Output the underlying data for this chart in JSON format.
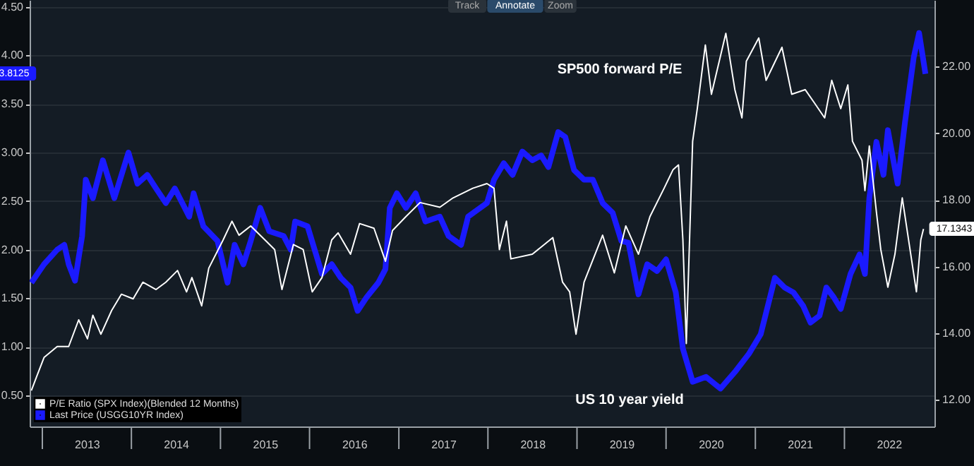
{
  "chart_data": {
    "type": "line",
    "xlim": [
      "2012-11-10",
      "2023-01-05"
    ],
    "xticks": [
      {
        "value": "2013-01-01",
        "label": null
      },
      {
        "value": "2013-07-02",
        "label": "2013"
      },
      {
        "value": "2014-01-01",
        "label": null
      },
      {
        "value": "2014-07-02",
        "label": "2014"
      },
      {
        "value": "2015-01-01",
        "label": null
      },
      {
        "value": "2015-07-02",
        "label": "2015"
      },
      {
        "value": "2016-01-01",
        "label": null
      },
      {
        "value": "2016-07-02",
        "label": "2016"
      },
      {
        "value": "2017-01-01",
        "label": null
      },
      {
        "value": "2017-07-02",
        "label": "2017"
      },
      {
        "value": "2018-01-01",
        "label": null
      },
      {
        "value": "2018-07-02",
        "label": "2018"
      },
      {
        "value": "2019-01-01",
        "label": null
      },
      {
        "value": "2019-07-02",
        "label": "2019"
      },
      {
        "value": "2020-01-01",
        "label": null
      },
      {
        "value": "2020-07-02",
        "label": "2020"
      },
      {
        "value": "2021-01-01",
        "label": null
      },
      {
        "value": "2021-07-02",
        "label": "2021"
      },
      {
        "value": "2022-01-01",
        "label": null
      },
      {
        "value": "2022-07-02",
        "label": "2022"
      }
    ],
    "ylim": [
      0.18,
      4.57
    ],
    "yticks": [
      {
        "value": 0.5,
        "label": "0.50"
      },
      {
        "value": 1.0,
        "label": "1.00"
      },
      {
        "value": 1.5,
        "label": "1.50"
      },
      {
        "value": 2.0,
        "label": "2.00"
      },
      {
        "value": 2.5,
        "label": "2.50"
      },
      {
        "value": 3.0,
        "label": "3.00"
      },
      {
        "value": 3.5,
        "label": "3.50"
      },
      {
        "value": 4.0,
        "label": "4.00"
      },
      {
        "value": 4.5,
        "label": "4.50"
      }
    ],
    "y2lim": [
      11.2,
      24.0
    ],
    "y2ticks": [
      {
        "value": 12,
        "label": "12.00"
      },
      {
        "value": 14,
        "label": "14.00"
      },
      {
        "value": 16,
        "label": "16.00"
      },
      {
        "value": 18,
        "label": "18.00"
      },
      {
        "value": 20,
        "label": "20.00"
      },
      {
        "value": 22,
        "label": "22.00"
      }
    ],
    "grid": "y",
    "legend": "bottom left",
    "annotations": [
      "SP500 forward P/E",
      "US 10 year yield",
      "3.8125",
      "17.1343",
      "Track",
      "Annotate",
      "Zoom"
    ],
    "series": [
      {
        "name": "P/E Ratio (SPX Index)(Blended 12 Months)",
        "color": "#ffffff",
        "axis": "y2",
        "x": [
          "2012-11-17",
          "2012-12-09",
          "2013-01-08",
          "2013-03-03",
          "2013-04-19",
          "2013-05-30",
          "2013-07-05",
          "2013-07-27",
          "2013-08-29",
          "2013-10-12",
          "2013-11-21",
          "2014-01-08",
          "2014-02-17",
          "2014-04-12",
          "2014-05-22",
          "2014-07-09",
          "2014-08-15",
          "2014-09-06",
          "2014-10-16",
          "2014-11-14",
          "2015-01-12",
          "2015-02-17",
          "2015-03-18",
          "2015-05-05",
          "2015-07-02",
          "2015-08-11",
          "2015-09-10",
          "2015-10-27",
          "2015-12-06",
          "2016-01-12",
          "2016-02-21",
          "2016-04-01",
          "2016-04-27",
          "2016-06-17",
          "2016-07-24",
          "2016-09-21",
          "2016-11-07",
          "2016-12-06",
          "2017-01-30",
          "2017-03-29",
          "2017-06-18",
          "2017-08-11",
          "2017-10-31",
          "2017-12-28",
          "2018-01-26",
          "2018-02-17",
          "2018-03-18",
          "2018-04-05",
          "2018-07-02",
          "2018-09-24",
          "2018-11-03",
          "2018-12-02",
          "2018-12-28",
          "2019-01-30",
          "2019-04-16",
          "2019-06-03",
          "2019-07-20",
          "2019-09-10",
          "2019-10-27",
          "2019-12-24",
          "2020-01-30",
          "2020-02-21",
          "2020-02-28",
          "2020-03-10",
          "2020-03-24",
          "2020-04-19",
          "2020-05-08",
          "2020-06-10",
          "2020-07-05",
          "2020-09-02",
          "2020-10-09",
          "2020-11-07",
          "2020-11-25",
          "2021-01-15",
          "2021-02-14",
          "2021-04-20",
          "2021-05-30",
          "2021-07-24",
          "2021-09-02",
          "2021-10-12",
          "2021-11-10",
          "2021-12-17",
          "2022-01-15",
          "2022-02-03",
          "2022-03-14",
          "2022-03-26",
          "2022-04-13",
          "2022-05-12",
          "2022-05-30",
          "2022-06-28",
          "2022-07-27",
          "2022-08-26",
          "2022-09-24",
          "2022-10-23",
          "2022-11-10",
          "2022-11-21"
        ],
        "values": [
          12.28,
          12.7,
          13.27,
          13.6,
          13.6,
          14.4,
          13.83,
          14.54,
          13.97,
          14.68,
          15.17,
          15.03,
          15.53,
          15.31,
          15.53,
          15.88,
          15.24,
          15.67,
          14.82,
          15.95,
          16.8,
          17.36,
          16.94,
          17.22,
          16.8,
          16.51,
          15.31,
          16.66,
          16.51,
          15.24,
          15.67,
          16.8,
          17.01,
          16.37,
          17.29,
          17.15,
          16.16,
          17.08,
          17.5,
          17.92,
          17.78,
          18.06,
          18.35,
          18.49,
          18.35,
          16.51,
          17.36,
          16.23,
          16.37,
          16.87,
          15.53,
          15.24,
          13.97,
          15.53,
          16.94,
          15.81,
          17.22,
          16.37,
          17.5,
          18.35,
          18.91,
          19.05,
          18.2,
          16.8,
          13.69,
          19.76,
          20.74,
          22.65,
          21.17,
          23.0,
          21.31,
          20.46,
          22.16,
          22.86,
          21.59,
          22.58,
          21.17,
          21.31,
          20.89,
          20.46,
          21.59,
          20.74,
          21.45,
          19.76,
          19.19,
          18.28,
          19.62,
          17.64,
          16.51,
          15.38,
          16.37,
          18.06,
          16.65,
          15.24,
          16.8,
          17.13
        ]
      },
      {
        "name": "Last Price (USGG10YR Index)",
        "color": "#1a1aff",
        "x": [
          "2012-11-17",
          "2013-01-08",
          "2013-03-03",
          "2013-04-01",
          "2013-04-19",
          "2013-05-15",
          "2013-06-13",
          "2013-06-28",
          "2013-07-27",
          "2013-09-06",
          "2013-10-05",
          "2013-10-23",
          "2013-12-20",
          "2014-01-26",
          "2014-03-07",
          "2014-04-12",
          "2014-05-22",
          "2014-06-28",
          "2014-08-26",
          "2014-09-13",
          "2014-10-23",
          "2014-12-20",
          "2015-01-30",
          "2015-02-28",
          "2015-04-05",
          "2015-05-05",
          "2015-06-13",
          "2015-07-20",
          "2015-09-17",
          "2015-10-16",
          "2015-11-03",
          "2015-12-24",
          "2016-02-21",
          "2016-04-01",
          "2016-05-08",
          "2016-06-17",
          "2016-07-16",
          "2016-08-22",
          "2016-10-09",
          "2016-11-07",
          "2016-11-25",
          "2016-12-24",
          "2017-01-30",
          "2017-03-11",
          "2017-04-20",
          "2017-06-18",
          "2017-07-24",
          "2017-09-13",
          "2017-10-12",
          "2017-12-28",
          "2018-01-26",
          "2018-03-07",
          "2018-04-12",
          "2018-05-22",
          "2018-07-02",
          "2018-08-07",
          "2018-09-06",
          "2018-10-16",
          "2018-11-14",
          "2018-12-20",
          "2019-01-30",
          "2019-03-07",
          "2019-04-16",
          "2019-05-27",
          "2019-07-02",
          "2019-07-31",
          "2019-09-10",
          "2019-10-16",
          "2019-11-25",
          "2020-01-01",
          "2020-02-10",
          "2020-03-10",
          "2020-04-19",
          "2020-06-13",
          "2020-08-11",
          "2020-10-09",
          "2020-12-06",
          "2021-01-23",
          "2021-03-22",
          "2021-05-01",
          "2021-06-06",
          "2021-07-16",
          "2021-08-15",
          "2021-09-21",
          "2021-10-19",
          "2021-11-18",
          "2021-12-17",
          "2022-01-26",
          "2022-03-04",
          "2022-03-26",
          "2022-04-13",
          "2022-05-12",
          "2022-06-10",
          "2022-06-28",
          "2022-08-07",
          "2022-09-06",
          "2022-10-12",
          "2022-11-03",
          "2022-11-29"
        ],
        "values": [
          1.66,
          1.85,
          2.0,
          2.05,
          1.85,
          1.68,
          2.14,
          2.72,
          2.53,
          2.92,
          2.68,
          2.53,
          3.0,
          2.68,
          2.77,
          2.63,
          2.48,
          2.63,
          2.34,
          2.58,
          2.24,
          2.09,
          1.66,
          2.05,
          1.85,
          2.09,
          2.43,
          2.19,
          2.14,
          2.0,
          2.29,
          2.24,
          1.75,
          1.85,
          1.71,
          1.61,
          1.37,
          1.51,
          1.66,
          1.8,
          2.43,
          2.58,
          2.43,
          2.58,
          2.29,
          2.34,
          2.14,
          2.05,
          2.34,
          2.48,
          2.72,
          2.89,
          2.77,
          3.01,
          2.92,
          2.97,
          2.85,
          3.21,
          3.16,
          2.82,
          2.72,
          2.72,
          2.48,
          2.38,
          2.09,
          2.07,
          1.54,
          1.85,
          1.78,
          1.9,
          1.56,
          0.98,
          0.64,
          0.69,
          0.57,
          0.74,
          0.93,
          1.13,
          1.71,
          1.61,
          1.56,
          1.42,
          1.25,
          1.32,
          1.61,
          1.51,
          1.39,
          1.75,
          1.95,
          1.75,
          2.53,
          3.11,
          2.77,
          3.23,
          2.68,
          3.31,
          3.98,
          4.23,
          3.81
        ]
      }
    ]
  }
}
